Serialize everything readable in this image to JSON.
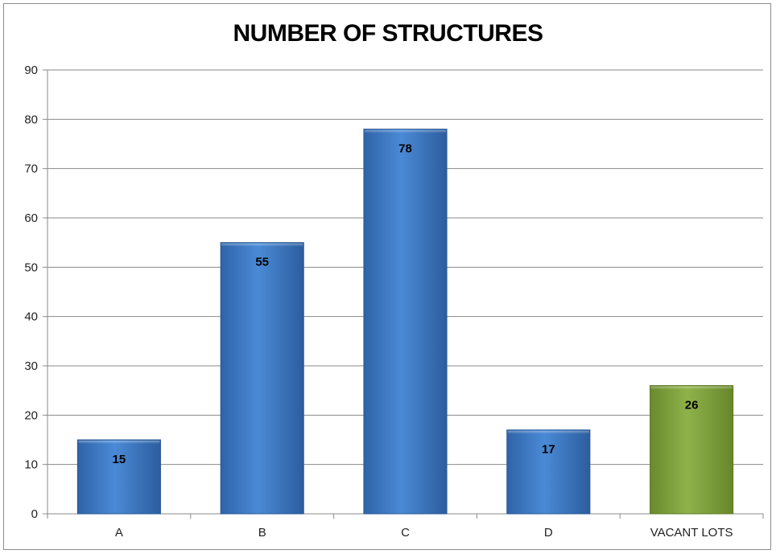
{
  "chart_data": {
    "type": "bar",
    "title": "NUMBER OF STRUCTURES",
    "categories": [
      "A",
      "B",
      "C",
      "D",
      "VACANT LOTS"
    ],
    "values": [
      15,
      55,
      78,
      17,
      26
    ],
    "data_labels": [
      "15",
      "55",
      "78",
      "17",
      "26"
    ],
    "bar_colors": [
      "#3f7dcc",
      "#3f7dcc",
      "#3f7dcc",
      "#3f7dcc",
      "#7f9f3c"
    ],
    "xlabel": "",
    "ylabel": "",
    "ylim": [
      0,
      90
    ],
    "yticks": [
      0,
      10,
      20,
      30,
      40,
      50,
      60,
      70,
      80,
      90
    ],
    "ytick_labels": [
      "0",
      "10",
      "20",
      "30",
      "40",
      "50",
      "60",
      "70",
      "80",
      "90"
    ],
    "grid": true,
    "legend": "none"
  }
}
